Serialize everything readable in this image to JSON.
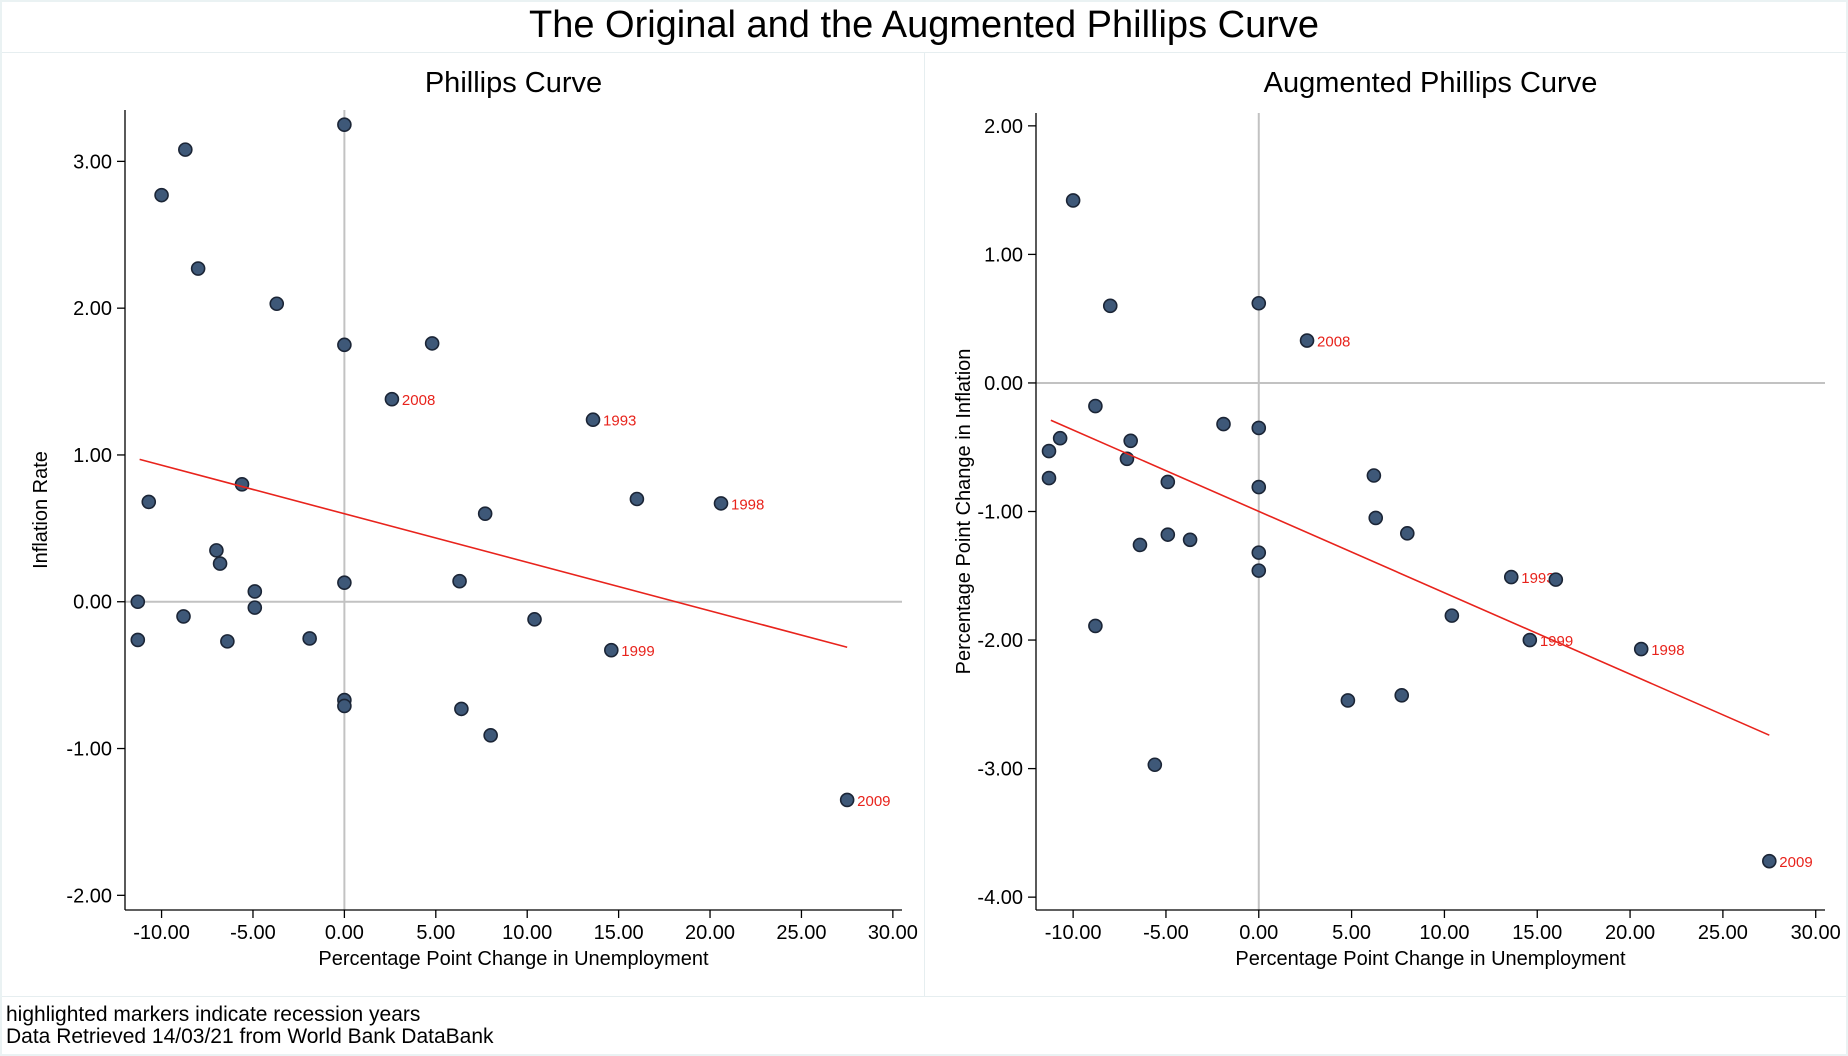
{
  "title": "The Original and the Augmented Phillips Curve",
  "notes": {
    "line1": "highlighted markers indicate recession years",
    "line2": "Data Retrieved 14/03/21 from World Bank DataBank"
  },
  "colors": {
    "marker_fill": "#3e5878",
    "marker_stroke": "#1b2536",
    "fit_line": "#e8231c",
    "label": "#e8231c",
    "reference_line": "#c2c2c2",
    "background": "#ffffff"
  },
  "chart_data": [
    {
      "type": "scatter",
      "title": "Phillips Curve",
      "xlabel": "Percentage Point Change in Unemployment",
      "ylabel": "Inflation Rate",
      "xlim": [
        -12,
        30.5
      ],
      "ylim": [
        -2.1,
        3.35
      ],
      "xticks": [
        -10,
        -5,
        0,
        5,
        10,
        15,
        20,
        25,
        30
      ],
      "yticks": [
        -2,
        -1,
        0,
        1,
        2,
        3
      ],
      "xtick_labels": [
        "-10.00",
        "-5.00",
        "0.00",
        "5.00",
        "10.00",
        "15.00",
        "20.00",
        "25.00",
        "30.00"
      ],
      "ytick_labels": [
        "-2.00",
        "-1.00",
        "0.00",
        "1.00",
        "2.00",
        "3.00"
      ],
      "reference_lines": {
        "x": 0,
        "y": 0
      },
      "points": [
        {
          "x": 0,
          "y": 3.25
        },
        {
          "x": -8.7,
          "y": 3.08
        },
        {
          "x": -10.0,
          "y": 2.77
        },
        {
          "x": -8.0,
          "y": 2.27
        },
        {
          "x": -3.7,
          "y": 2.03
        },
        {
          "x": 0,
          "y": 1.75
        },
        {
          "x": 4.8,
          "y": 1.76
        },
        {
          "x": 2.6,
          "y": 1.38,
          "label": "2008"
        },
        {
          "x": 13.6,
          "y": 1.24,
          "label": "1993"
        },
        {
          "x": -5.6,
          "y": 0.8
        },
        {
          "x": -10.7,
          "y": 0.68
        },
        {
          "x": 16.0,
          "y": 0.7
        },
        {
          "x": 7.7,
          "y": 0.6
        },
        {
          "x": 20.6,
          "y": 0.67,
          "label": "1998"
        },
        {
          "x": -7.0,
          "y": 0.35
        },
        {
          "x": -6.8,
          "y": 0.26
        },
        {
          "x": -4.9,
          "y": 0.07
        },
        {
          "x": -4.9,
          "y": -0.04
        },
        {
          "x": 0,
          "y": 0.13
        },
        {
          "x": 6.3,
          "y": 0.14
        },
        {
          "x": -11.3,
          "y": 0.0
        },
        {
          "x": -8.8,
          "y": -0.1
        },
        {
          "x": -11.3,
          "y": -0.26
        },
        {
          "x": -6.4,
          "y": -0.27
        },
        {
          "x": -1.9,
          "y": -0.25
        },
        {
          "x": 10.4,
          "y": -0.12
        },
        {
          "x": 14.6,
          "y": -0.33,
          "label": "1999"
        },
        {
          "x": 0,
          "y": -0.67
        },
        {
          "x": 0,
          "y": -0.71
        },
        {
          "x": 6.4,
          "y": -0.73
        },
        {
          "x": 8.0,
          "y": -0.91
        },
        {
          "x": 27.5,
          "y": -1.35,
          "label": "2009"
        }
      ],
      "fit_line": {
        "x": [
          -11.2,
          27.5
        ],
        "y": [
          0.97,
          -0.31
        ]
      }
    },
    {
      "type": "scatter",
      "title": "Augmented Phillips Curve",
      "xlabel": "Percentage Point Change in Unemployment",
      "ylabel": "Percentage Point Change in Inflation",
      "xlim": [
        -12,
        30.5
      ],
      "ylim": [
        -4.1,
        2.1
      ],
      "xticks": [
        -10,
        -5,
        0,
        5,
        10,
        15,
        20,
        25,
        30
      ],
      "yticks": [
        -4,
        -3,
        -2,
        -1,
        0,
        1,
        2
      ],
      "xtick_labels": [
        "-10.00",
        "-5.00",
        "0.00",
        "5.00",
        "10.00",
        "15.00",
        "20.00",
        "25.00",
        "30.00"
      ],
      "ytick_labels": [
        "-4.00",
        "-3.00",
        "-2.00",
        "-1.00",
        "0.00",
        "1.00",
        "2.00"
      ],
      "reference_lines": {
        "x": 0,
        "y": 0
      },
      "points": [
        {
          "x": -10.0,
          "y": 1.42
        },
        {
          "x": -8.0,
          "y": 0.6
        },
        {
          "x": 0,
          "y": 0.62
        },
        {
          "x": 2.6,
          "y": 0.33,
          "label": "2008"
        },
        {
          "x": -8.8,
          "y": -0.18
        },
        {
          "x": -1.9,
          "y": -0.32
        },
        {
          "x": 0,
          "y": -0.35
        },
        {
          "x": -10.7,
          "y": -0.43
        },
        {
          "x": -11.3,
          "y": -0.53
        },
        {
          "x": -6.9,
          "y": -0.45
        },
        {
          "x": -7.1,
          "y": -0.59
        },
        {
          "x": -11.3,
          "y": -0.74
        },
        {
          "x": -4.9,
          "y": -0.77
        },
        {
          "x": 6.2,
          "y": -0.72
        },
        {
          "x": 0,
          "y": -0.81
        },
        {
          "x": 6.3,
          "y": -1.05
        },
        {
          "x": 8.0,
          "y": -1.17
        },
        {
          "x": -4.9,
          "y": -1.18
        },
        {
          "x": -3.7,
          "y": -1.22
        },
        {
          "x": -6.4,
          "y": -1.26
        },
        {
          "x": 0,
          "y": -1.32
        },
        {
          "x": 0,
          "y": -1.46
        },
        {
          "x": 13.6,
          "y": -1.51,
          "label": "1993"
        },
        {
          "x": 16.0,
          "y": -1.53
        },
        {
          "x": 10.4,
          "y": -1.81
        },
        {
          "x": -8.8,
          "y": -1.89
        },
        {
          "x": 14.6,
          "y": -2.0,
          "label": "1999"
        },
        {
          "x": 20.6,
          "y": -2.07,
          "label": "1998"
        },
        {
          "x": 4.8,
          "y": -2.47
        },
        {
          "x": 7.7,
          "y": -2.43
        },
        {
          "x": -5.6,
          "y": -2.97
        },
        {
          "x": 27.5,
          "y": -3.72,
          "label": "2009"
        }
      ],
      "fit_line": {
        "x": [
          -11.2,
          27.5
        ],
        "y": [
          -0.29,
          -2.74
        ]
      }
    }
  ]
}
